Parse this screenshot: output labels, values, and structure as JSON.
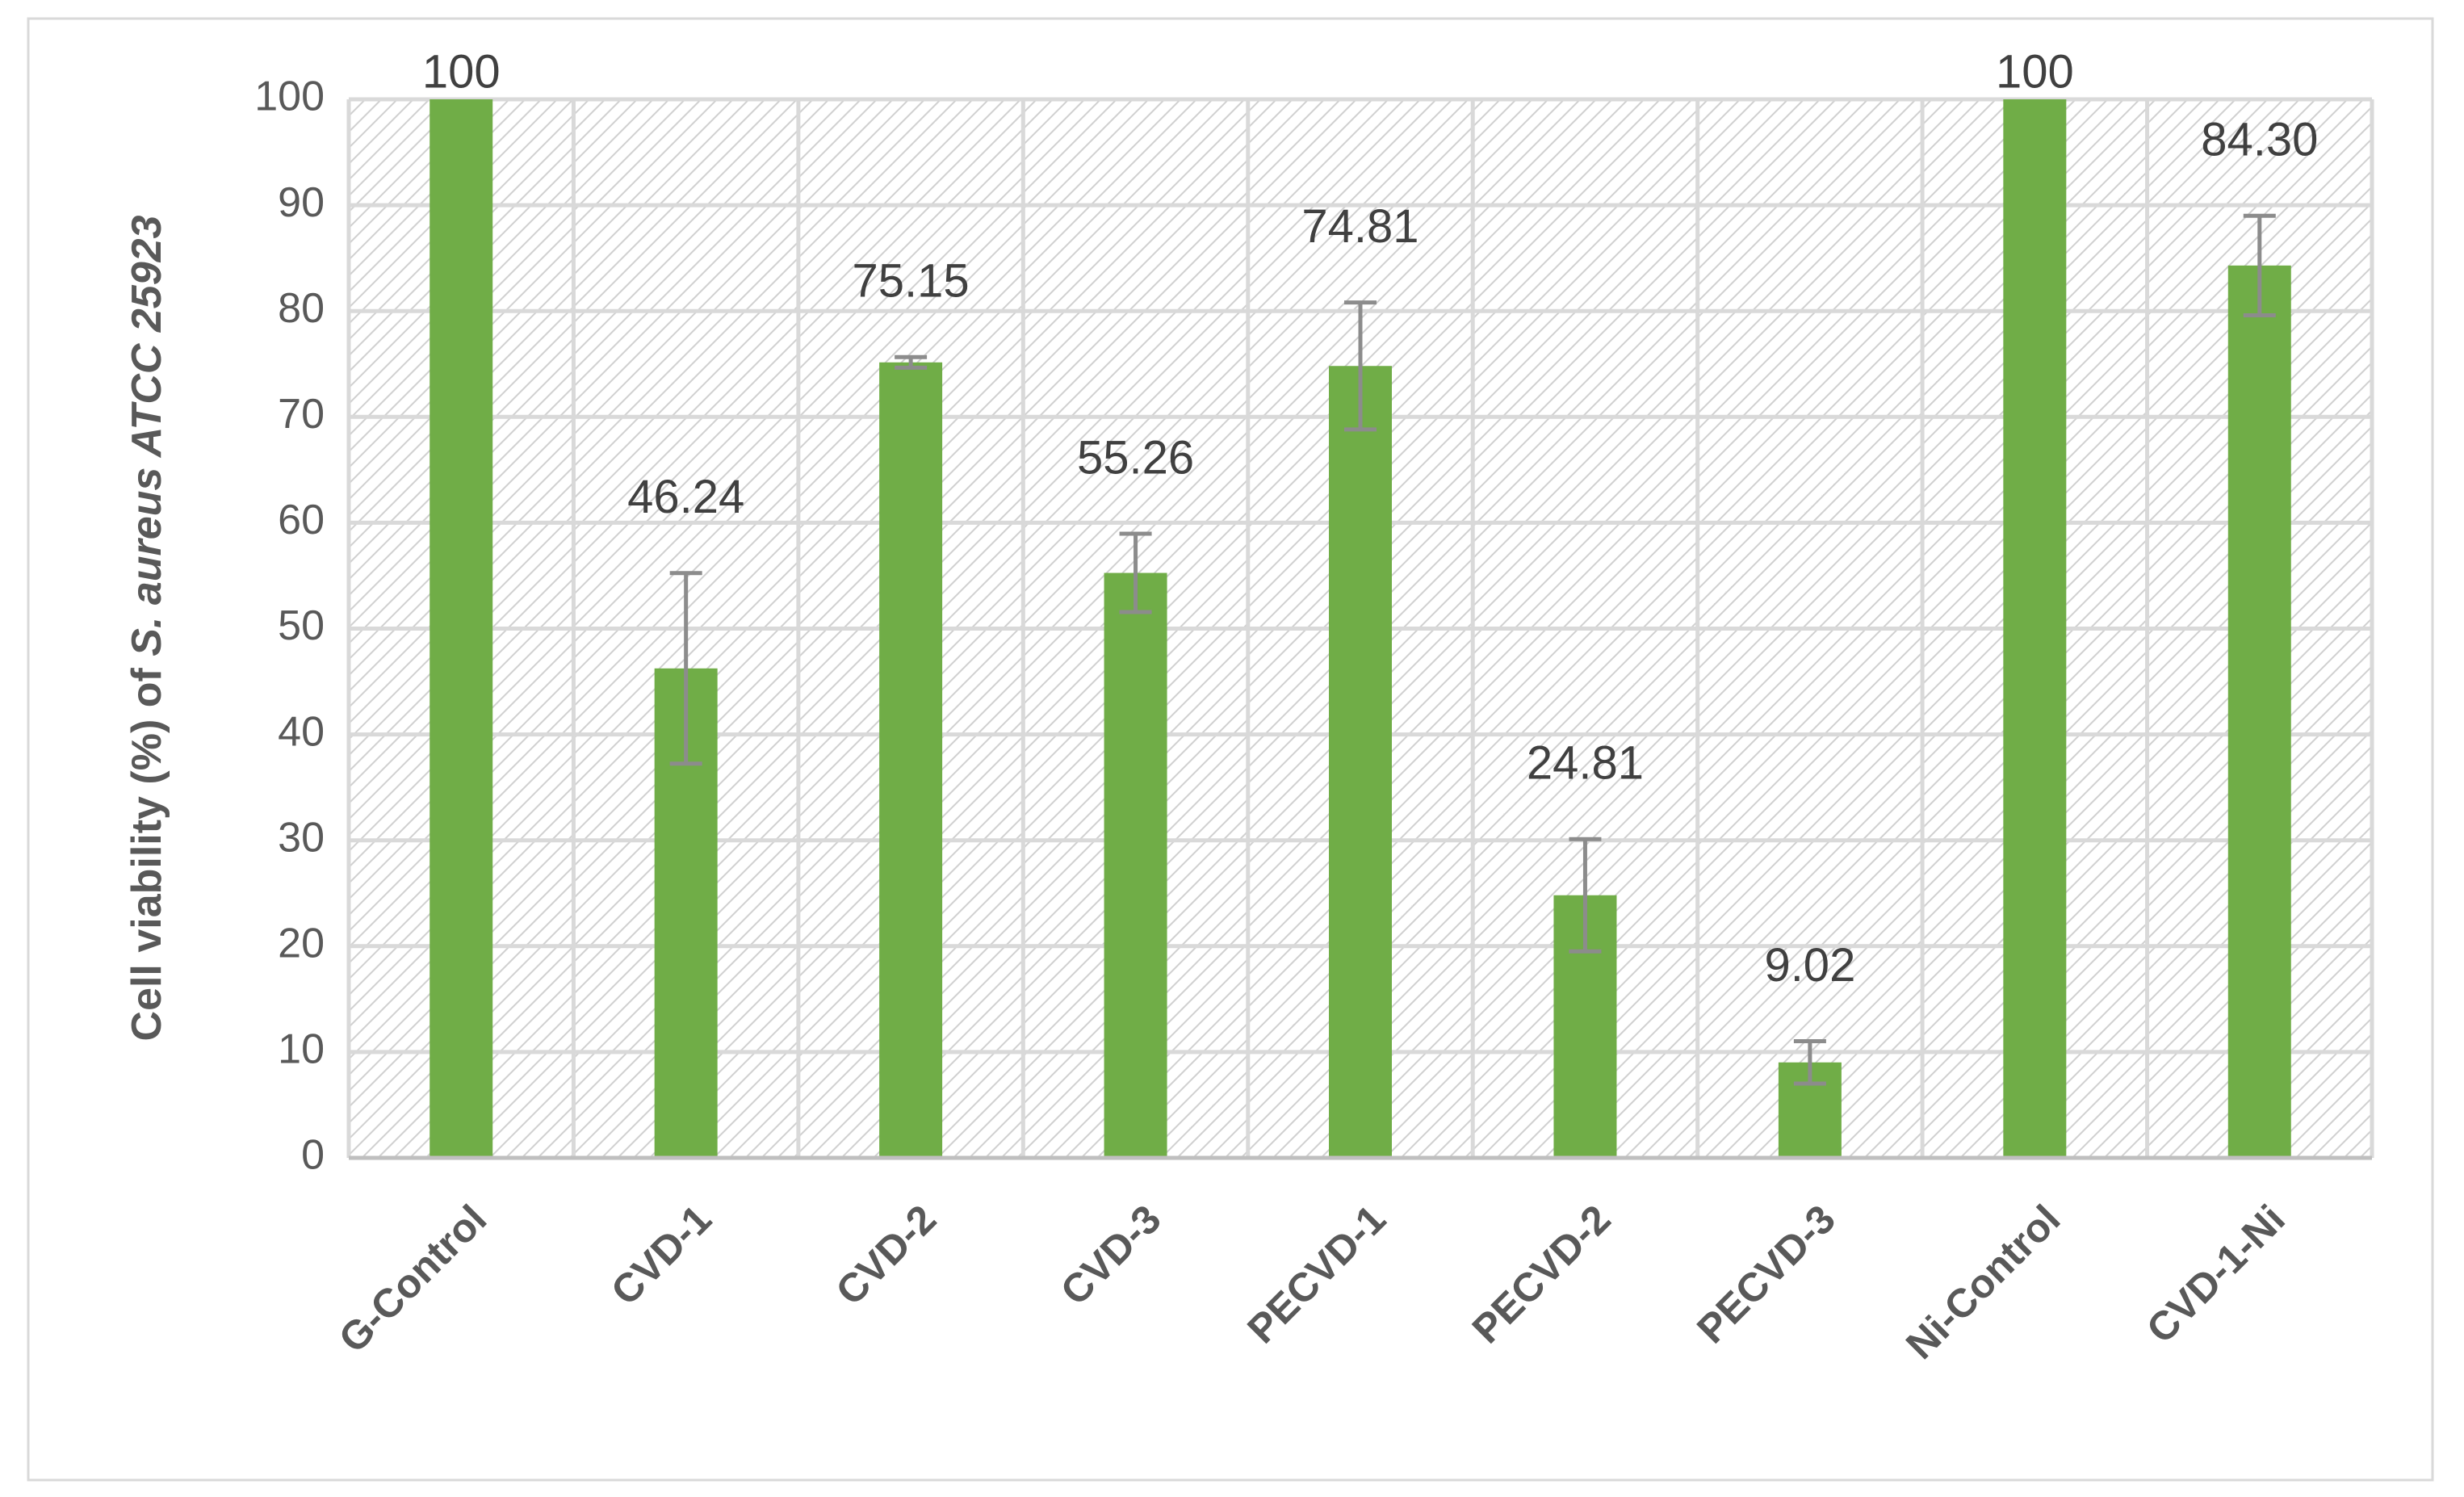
{
  "chart_data": {
    "type": "bar",
    "ylabel_parts": [
      "Cell viability (%) of ",
      "S. aureus ATCC 25923"
    ],
    "categories": [
      "G-Control",
      "CVD-1",
      "CVD-2",
      "CVD-3",
      "PECVD-1",
      "PECVD-2",
      "PECVD-3",
      "Ni-Control",
      "CVD-1-Ni"
    ],
    "values": [
      100,
      46.24,
      75.15,
      55.26,
      74.81,
      24.81,
      9.02,
      100,
      84.3
    ],
    "value_labels": [
      "100",
      "46.24",
      "75.15",
      "55.26",
      "74.81",
      "24.81",
      "9.02",
      "100",
      "84.30"
    ],
    "errors": [
      null,
      9,
      0.5,
      3.7,
      6,
      5.3,
      2,
      null,
      4.7
    ],
    "color": "#70ad47",
    "ylim": [
      0,
      100
    ],
    "yticks": [
      0,
      10,
      20,
      30,
      40,
      50,
      60,
      70,
      80,
      90,
      100
    ],
    "grid": true
  }
}
